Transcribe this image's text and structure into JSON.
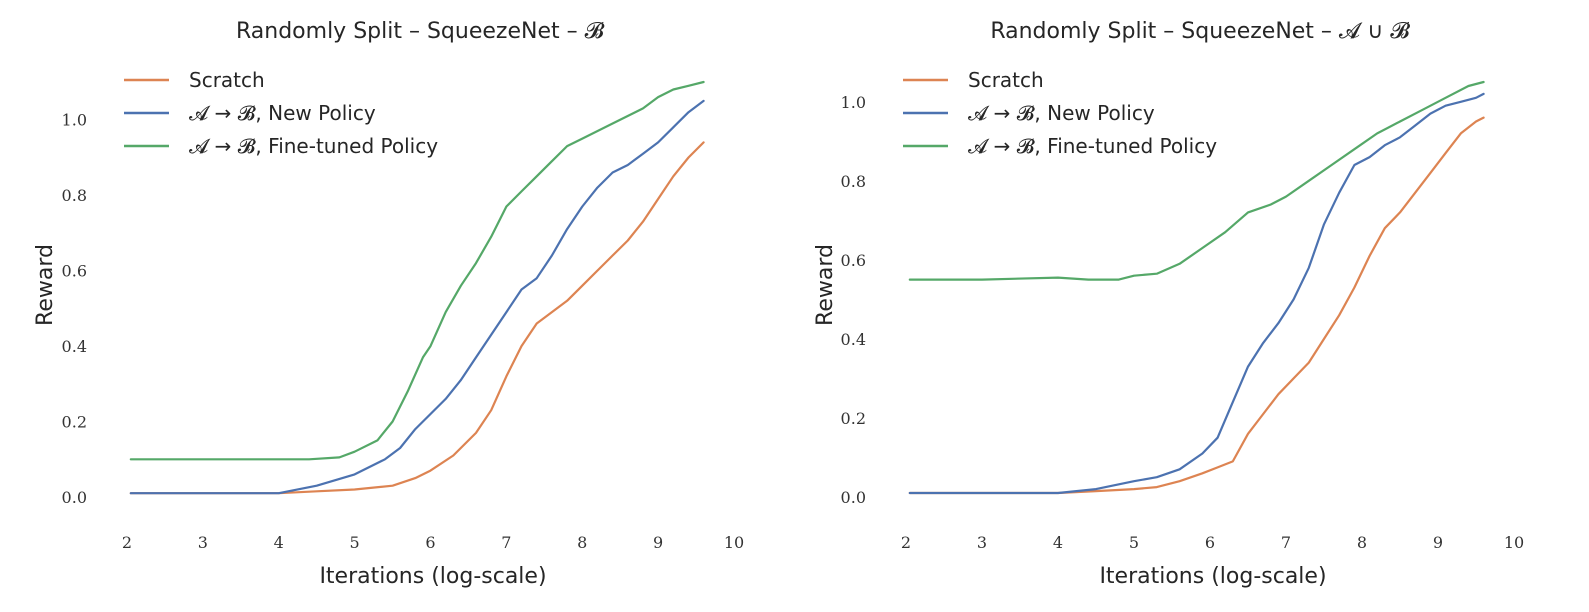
{
  "colors": {
    "scratch": "#dd8452",
    "new_policy": "#4c72b0",
    "finetuned": "#55a868",
    "text": "#262626"
  },
  "chart_data": [
    {
      "type": "line",
      "title": "Randomly Split – SqueezeNet – 𝓑",
      "xlabel": "Iterations (log-scale)",
      "ylabel": "Reward",
      "xlim": [
        2,
        10
      ],
      "ylim": [
        0,
        1.1
      ],
      "xticks": [
        "2",
        "3",
        "4",
        "5",
        "6",
        "7",
        "8",
        "9",
        "10"
      ],
      "yticks": [
        "0.0",
        "0.2",
        "0.4",
        "0.6",
        "0.8",
        "1.0"
      ],
      "grid": false,
      "legend_position": "top-left",
      "series": [
        {
          "name": "Scratch",
          "color_key": "scratch",
          "x": [
            2.05,
            3,
            4,
            4.5,
            5,
            5.5,
            5.8,
            6.0,
            6.3,
            6.6,
            6.8,
            7.0,
            7.2,
            7.4,
            7.6,
            7.8,
            8.0,
            8.2,
            8.4,
            8.6,
            8.8,
            9.0,
            9.2,
            9.4,
            9.6
          ],
          "y": [
            0.01,
            0.01,
            0.01,
            0.015,
            0.02,
            0.03,
            0.05,
            0.07,
            0.11,
            0.17,
            0.23,
            0.32,
            0.4,
            0.46,
            0.49,
            0.52,
            0.56,
            0.6,
            0.64,
            0.68,
            0.73,
            0.79,
            0.85,
            0.9,
            0.94
          ]
        },
        {
          "name": "𝓐 → 𝓑, New Policy",
          "color_key": "new_policy",
          "x": [
            2.05,
            3,
            4,
            4.5,
            5,
            5.4,
            5.6,
            5.8,
            6.0,
            6.2,
            6.4,
            6.6,
            6.8,
            7.0,
            7.2,
            7.4,
            7.6,
            7.8,
            8.0,
            8.2,
            8.4,
            8.6,
            8.8,
            9.0,
            9.2,
            9.4,
            9.6
          ],
          "y": [
            0.01,
            0.01,
            0.01,
            0.03,
            0.06,
            0.1,
            0.13,
            0.18,
            0.22,
            0.26,
            0.31,
            0.37,
            0.43,
            0.49,
            0.55,
            0.58,
            0.64,
            0.71,
            0.77,
            0.82,
            0.86,
            0.88,
            0.91,
            0.94,
            0.98,
            1.02,
            1.05
          ]
        },
        {
          "name": "𝓐 → 𝓑, Fine-tuned Policy",
          "color_key": "finetuned",
          "x": [
            2.05,
            3,
            4,
            4.4,
            4.8,
            5.0,
            5.3,
            5.5,
            5.7,
            5.9,
            6.0,
            6.2,
            6.4,
            6.6,
            6.8,
            7.0,
            7.2,
            7.4,
            7.6,
            7.8,
            8.0,
            8.4,
            8.8,
            9.0,
            9.2,
            9.4,
            9.6
          ],
          "y": [
            0.1,
            0.1,
            0.1,
            0.1,
            0.105,
            0.12,
            0.15,
            0.2,
            0.28,
            0.37,
            0.4,
            0.49,
            0.56,
            0.62,
            0.69,
            0.77,
            0.81,
            0.85,
            0.89,
            0.93,
            0.95,
            0.99,
            1.03,
            1.06,
            1.08,
            1.09,
            1.1
          ]
        }
      ]
    },
    {
      "type": "line",
      "title": "Randomly Split – SqueezeNet – 𝓐 ∪ 𝓑",
      "xlabel": "Iterations (log-scale)",
      "ylabel": "Reward",
      "xlim": [
        2,
        10
      ],
      "ylim": [
        0,
        1.05
      ],
      "xticks": [
        "2",
        "3",
        "4",
        "5",
        "6",
        "7",
        "8",
        "9",
        "10"
      ],
      "yticks": [
        "0.0",
        "0.2",
        "0.4",
        "0.6",
        "0.8",
        "1.0"
      ],
      "grid": false,
      "legend_position": "top-left",
      "series": [
        {
          "name": "Scratch",
          "color_key": "scratch",
          "x": [
            2.05,
            3,
            4,
            4.5,
            5,
            5.3,
            5.6,
            5.9,
            6.1,
            6.3,
            6.5,
            6.7,
            6.9,
            7.1,
            7.3,
            7.5,
            7.7,
            7.9,
            8.1,
            8.3,
            8.5,
            8.7,
            8.9,
            9.1,
            9.3,
            9.5,
            9.6
          ],
          "y": [
            0.01,
            0.01,
            0.01,
            0.015,
            0.02,
            0.025,
            0.04,
            0.06,
            0.075,
            0.09,
            0.16,
            0.21,
            0.26,
            0.3,
            0.34,
            0.4,
            0.46,
            0.53,
            0.61,
            0.68,
            0.72,
            0.77,
            0.82,
            0.87,
            0.92,
            0.95,
            0.96
          ]
        },
        {
          "name": "𝓐 → 𝓑, New Policy",
          "color_key": "new_policy",
          "x": [
            2.05,
            3,
            4,
            4.5,
            5,
            5.3,
            5.6,
            5.9,
            6.1,
            6.3,
            6.5,
            6.7,
            6.9,
            7.1,
            7.3,
            7.5,
            7.7,
            7.9,
            8.1,
            8.3,
            8.5,
            8.7,
            8.9,
            9.1,
            9.3,
            9.5,
            9.6
          ],
          "y": [
            0.01,
            0.01,
            0.01,
            0.02,
            0.04,
            0.05,
            0.07,
            0.11,
            0.15,
            0.24,
            0.33,
            0.39,
            0.44,
            0.5,
            0.58,
            0.69,
            0.77,
            0.84,
            0.86,
            0.89,
            0.91,
            0.94,
            0.97,
            0.99,
            1.0,
            1.01,
            1.02
          ]
        },
        {
          "name": "𝓐 → 𝓑, Fine-tuned Policy",
          "color_key": "finetuned",
          "x": [
            2.05,
            3,
            4,
            4.4,
            4.8,
            5.0,
            5.3,
            5.6,
            5.9,
            6.2,
            6.5,
            6.8,
            7.0,
            7.3,
            7.6,
            7.9,
            8.2,
            8.5,
            8.8,
            9.1,
            9.4,
            9.6
          ],
          "y": [
            0.55,
            0.55,
            0.555,
            0.55,
            0.55,
            0.56,
            0.565,
            0.59,
            0.63,
            0.67,
            0.72,
            0.74,
            0.76,
            0.8,
            0.84,
            0.88,
            0.92,
            0.95,
            0.98,
            1.01,
            1.04,
            1.05
          ]
        }
      ]
    }
  ]
}
